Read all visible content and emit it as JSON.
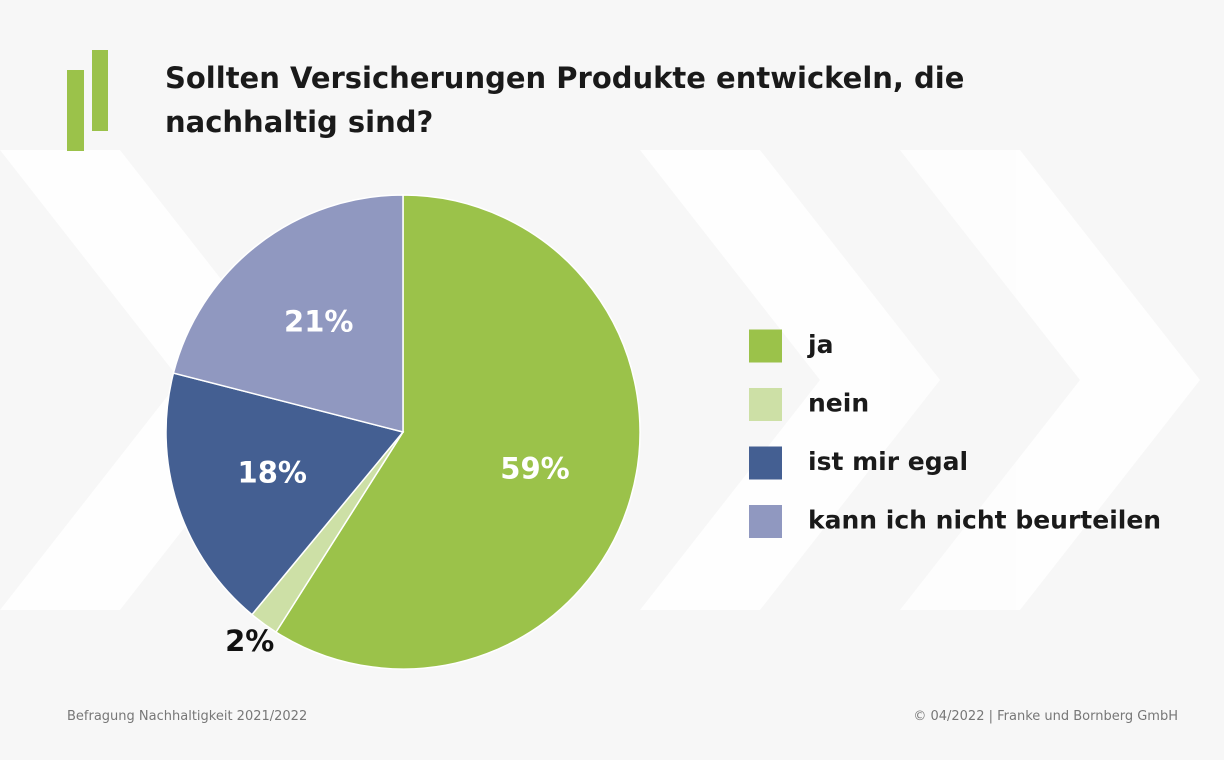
{
  "chart_data": {
    "type": "pie",
    "title": "Sollten Versicherungen Produkte entwickeln, die nachhaltig sind?",
    "categories": [
      "ja",
      "nein",
      "ist mir egal",
      "kann ich nicht beurteilen"
    ],
    "values": [
      59,
      2,
      18,
      21
    ],
    "value_labels": [
      "59%",
      "2%",
      "18%",
      "21%"
    ],
    "colors": [
      "#9bc24a",
      "#cde0a6",
      "#445f92",
      "#9098c0"
    ],
    "legend": "right",
    "source": "Befragung Nachhaltigkeit 2021/2022",
    "copyright": "© 04/2022 | Franke und Bornberg GmbH"
  }
}
